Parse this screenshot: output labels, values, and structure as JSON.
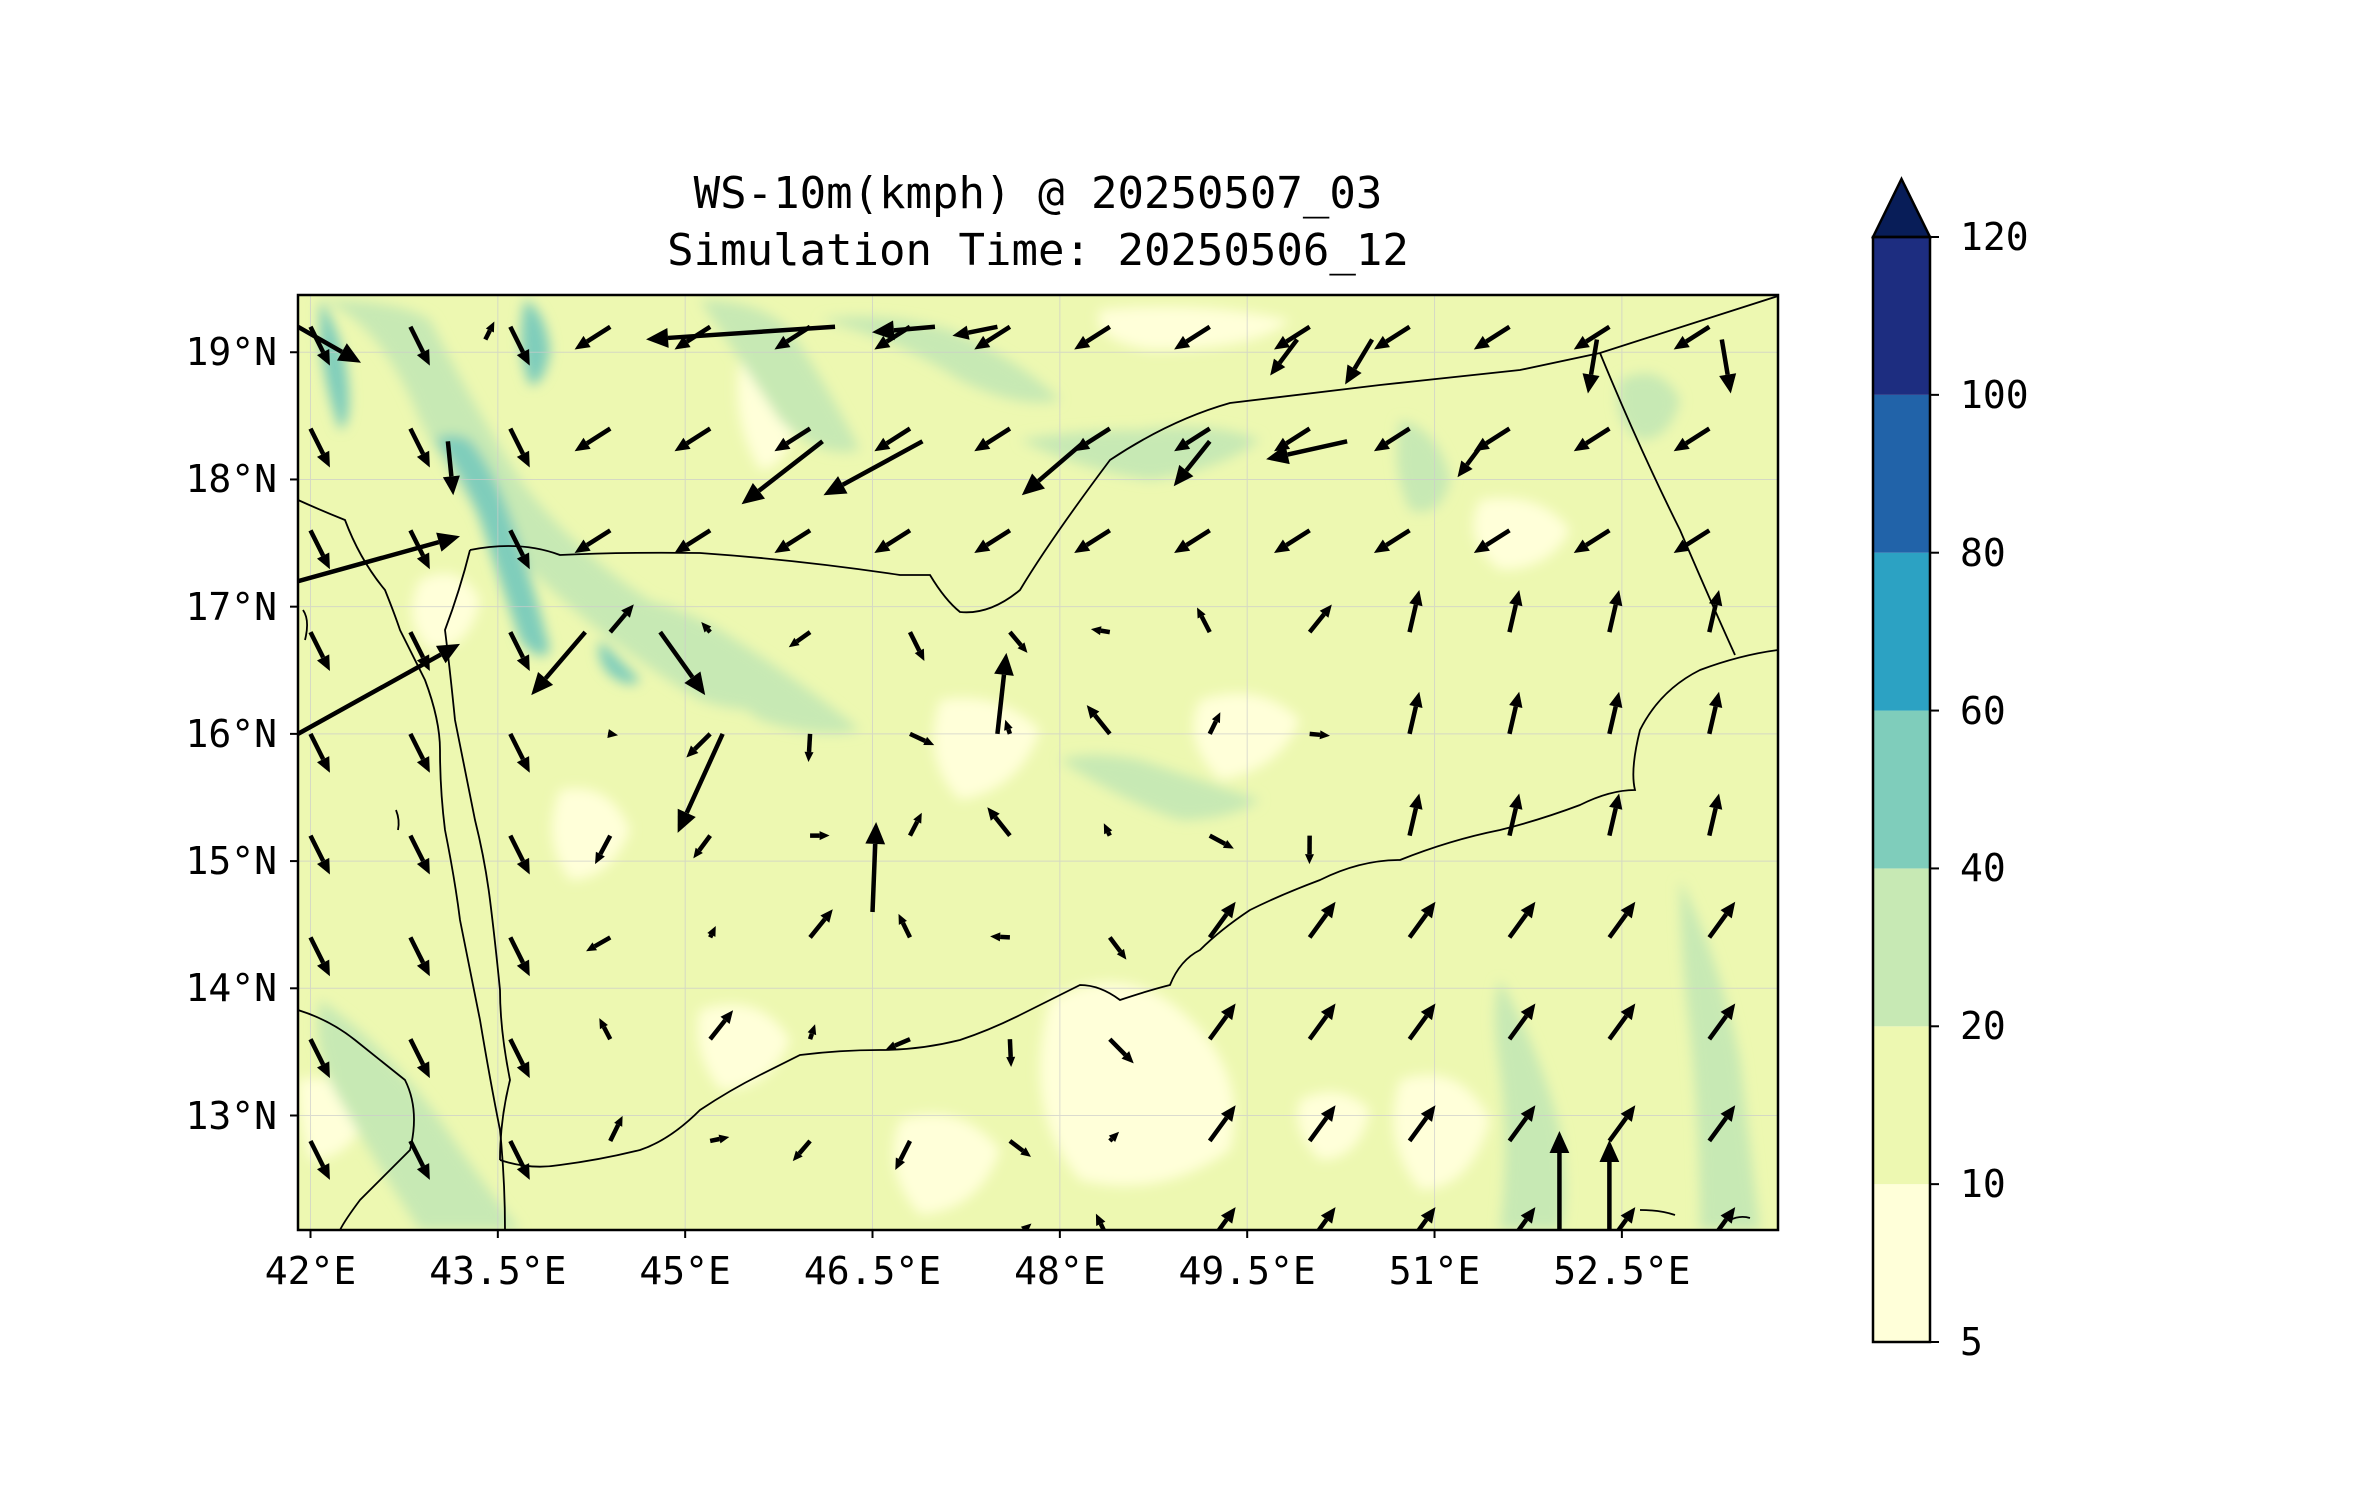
{
  "title": "WS-10m(kmph) @ 20250507_03",
  "subtitle": "Simulation Time: 20250506_12",
  "map": {
    "lon_ticks": [
      "42°E",
      "43.5°E",
      "45°E",
      "46.5°E",
      "48°E",
      "49.5°E",
      "51°E",
      "52.5°E"
    ],
    "lat_ticks": [
      "19°N",
      "18°N",
      "17°N",
      "16°N",
      "15°N",
      "14°N",
      "13°N"
    ],
    "lon_range": [
      41.9,
      53.75
    ],
    "lat_range": [
      12.1,
      19.45
    ]
  },
  "colorbar": {
    "ticks": [
      "5",
      "10",
      "20",
      "40",
      "60",
      "80",
      "100",
      "120"
    ],
    "colors": [
      "#ffffd9",
      "#edf8b1",
      "#c7e9b4",
      "#7fcdbb",
      "#2ca2c3",
      "#2163a9",
      "#1d2d80",
      "#081d58"
    ],
    "extend": "max"
  },
  "chart_data": {
    "type": "heatmap",
    "variable": "WS-10m(kmph)",
    "valid_time": "20250507_03",
    "simulation_time": "20250506_12",
    "levels": [
      5,
      10,
      20,
      40,
      60,
      80,
      100,
      120
    ],
    "extend": "max",
    "xlim": [
      41.9,
      53.75
    ],
    "ylim": [
      12.1,
      19.45
    ],
    "grid": true,
    "wind_vectors": [
      {
        "lon": 41.9,
        "lat": 19.2,
        "u": 3.5,
        "v": -2.0
      },
      {
        "lon": 43.4,
        "lat": 19.1,
        "u": 0.5,
        "v": 1.0
      },
      {
        "lon": 46.2,
        "lat": 19.2,
        "u": -10.5,
        "v": -0.7
      },
      {
        "lon": 47.0,
        "lat": 19.2,
        "u": -3.5,
        "v": -0.3
      },
      {
        "lon": 47.5,
        "lat": 19.2,
        "u": -2.5,
        "v": -0.5
      },
      {
        "lon": 49.9,
        "lat": 19.1,
        "u": -1.5,
        "v": -2.0
      },
      {
        "lon": 50.5,
        "lat": 19.1,
        "u": -1.5,
        "v": -2.5
      },
      {
        "lon": 52.3,
        "lat": 19.1,
        "u": -0.5,
        "v": -3.0
      },
      {
        "lon": 53.3,
        "lat": 19.1,
        "u": 0.5,
        "v": -3.0
      },
      {
        "lon": 43.1,
        "lat": 18.3,
        "u": 0.3,
        "v": -3.0
      },
      {
        "lon": 46.1,
        "lat": 18.3,
        "u": -4.5,
        "v": -3.5
      },
      {
        "lon": 46.9,
        "lat": 18.3,
        "u": -5.5,
        "v": -3.0
      },
      {
        "lon": 48.2,
        "lat": 18.3,
        "u": -3.5,
        "v": -3.0
      },
      {
        "lon": 49.2,
        "lat": 18.3,
        "u": -2.0,
        "v": -2.5
      },
      {
        "lon": 50.3,
        "lat": 18.3,
        "u": -4.5,
        "v": -1.0
      },
      {
        "lon": 51.4,
        "lat": 18.3,
        "u": -1.5,
        "v": -2.0
      },
      {
        "lon": 41.9,
        "lat": 17.2,
        "u": 9.0,
        "v": 2.5
      },
      {
        "lon": 41.9,
        "lat": 16.0,
        "u": 9.0,
        "v": 5.0
      },
      {
        "lon": 44.8,
        "lat": 16.8,
        "u": 2.5,
        "v": -3.5
      },
      {
        "lon": 44.2,
        "lat": 16.8,
        "u": -3.0,
        "v": -3.5
      },
      {
        "lon": 45.3,
        "lat": 16.0,
        "u": -2.5,
        "v": -5.5
      },
      {
        "lon": 47.5,
        "lat": 16.0,
        "u": 0.5,
        "v": 4.5
      },
      {
        "lon": 46.5,
        "lat": 14.6,
        "u": 0.2,
        "v": 5.0
      },
      {
        "lon": 52.0,
        "lat": 12.1,
        "u": 0.0,
        "v": 5.5
      },
      {
        "lon": 52.4,
        "lat": 12.1,
        "u": 0.0,
        "v": 5.0
      }
    ]
  }
}
